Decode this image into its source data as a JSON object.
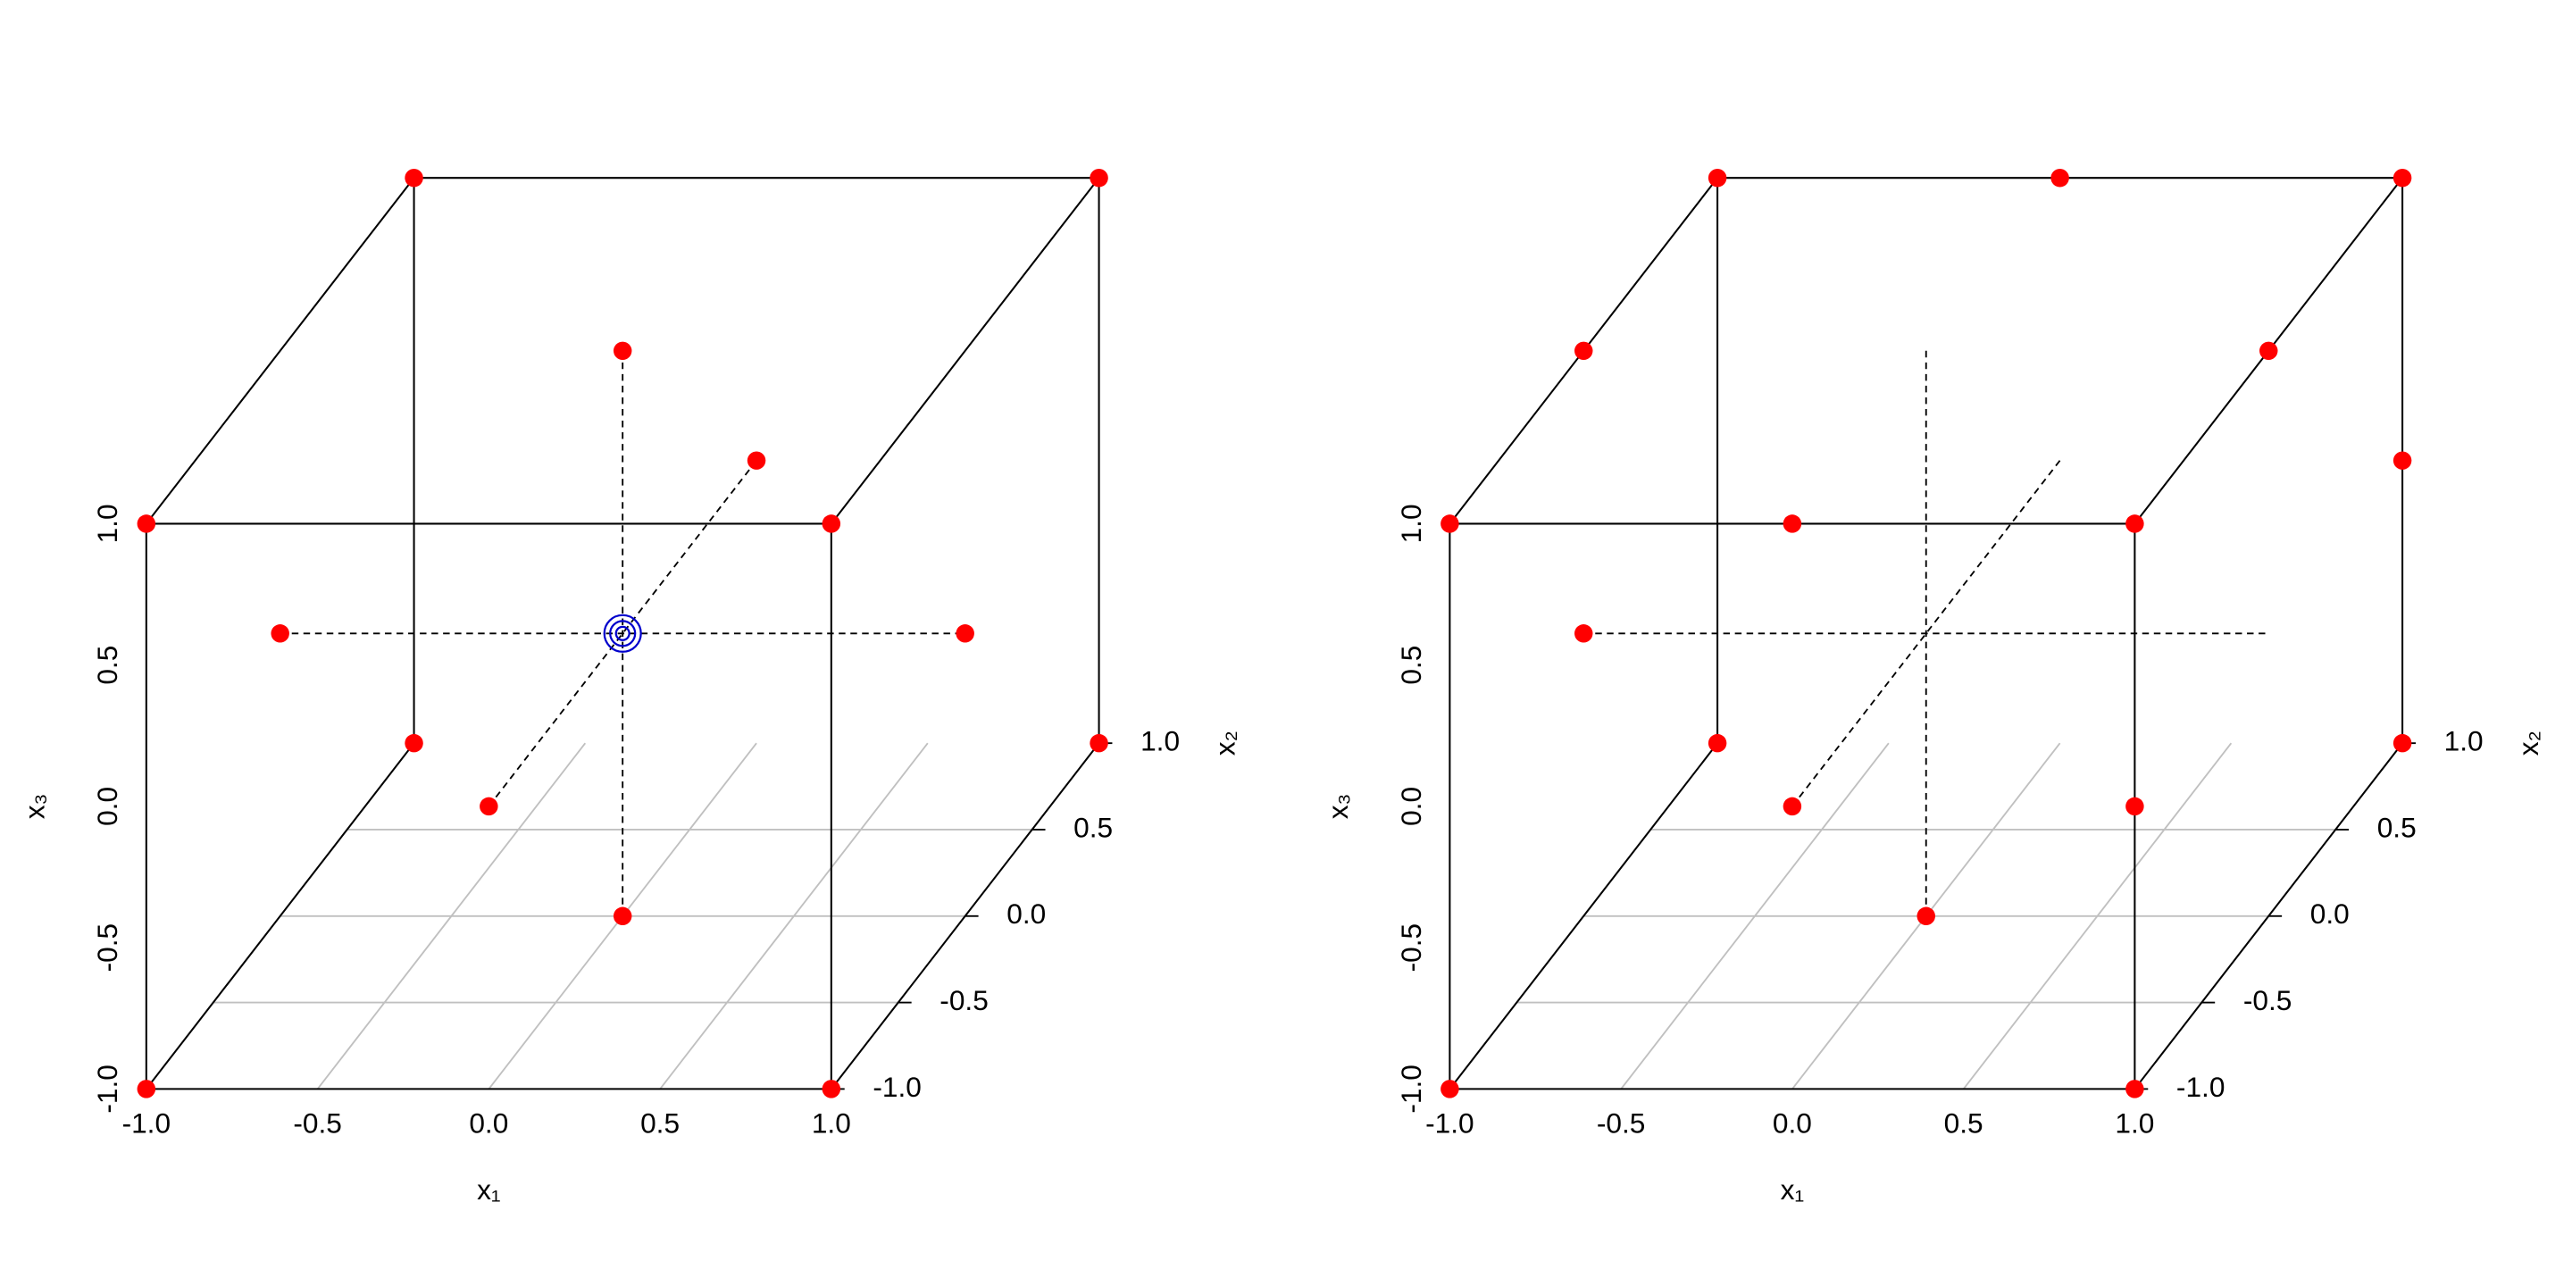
{
  "chart_data": [
    {
      "type": "scatter3d",
      "xlabel": "x₁",
      "ylabel": "x₂",
      "zlabel": "x₃",
      "xlim": [
        -1,
        1
      ],
      "ylim": [
        -1,
        1
      ],
      "zlim": [
        -1,
        1
      ],
      "xticks": [
        {
          "value": -1,
          "label": "-1.0"
        },
        -0.5,
        {
          "value": 0,
          "label": "0.0"
        },
        0.5,
        {
          "value": 1,
          "label": "1.0"
        }
      ],
      "yticks": [
        {
          "value": -1,
          "label": "-1.0"
        },
        -0.5,
        {
          "value": 0,
          "label": "0.0"
        },
        0.5,
        {
          "value": 1,
          "label": "1.0"
        }
      ],
      "zticks": [
        {
          "value": -1,
          "label": "-1.0"
        },
        -0.5,
        {
          "value": 0,
          "label": "0.0"
        },
        0.5,
        {
          "value": 1,
          "label": "1.0"
        }
      ],
      "grid": true,
      "series": [
        {
          "color": "#ff0000",
          "marker": "dot",
          "x": [
            -1,
            1,
            -1,
            1,
            -1,
            1,
            -1,
            1,
            -1,
            1,
            0,
            0,
            0,
            0
          ],
          "y": [
            -1,
            -1,
            1,
            1,
            -1,
            -1,
            1,
            1,
            0,
            0,
            -1,
            1,
            0,
            0
          ],
          "z": [
            -1,
            -1,
            -1,
            -1,
            1,
            1,
            1,
            1,
            0,
            0,
            0,
            0,
            -1,
            1
          ]
        },
        {
          "color": "#0000cc",
          "marker": "ring",
          "x": [
            0,
            0,
            0
          ],
          "y": [
            0,
            0,
            0
          ],
          "z": [
            0,
            0,
            0
          ]
        }
      ]
    },
    {
      "type": "scatter3d",
      "xlabel": "x₁",
      "ylabel": "x₂",
      "zlabel": "x₃",
      "xlim": [
        -1,
        1
      ],
      "ylim": [
        -1,
        1
      ],
      "zlim": [
        -1,
        1
      ],
      "xticks": [
        {
          "value": -1,
          "label": "-1.0"
        },
        -0.5,
        {
          "value": 0,
          "label": "0.0"
        },
        0.5,
        {
          "value": 1,
          "label": "1.0"
        }
      ],
      "yticks": [
        {
          "value": -1,
          "label": "-1.0"
        },
        -0.5,
        {
          "value": 0,
          "label": "0.0"
        },
        0.5,
        {
          "value": 1,
          "label": "1.0"
        }
      ],
      "zticks": [
        {
          "value": -1,
          "label": "-1.0"
        },
        -0.5,
        {
          "value": 0,
          "label": "0.0"
        },
        0.5,
        {
          "value": 1,
          "label": "1.0"
        }
      ],
      "grid": true,
      "series": [
        {
          "color": "#ff0000",
          "marker": "dot",
          "x": [
            -1,
            1,
            -1,
            1,
            -1,
            1,
            -1,
            1,
            0,
            -1,
            1,
            1,
            0,
            -1,
            0,
            1,
            0
          ],
          "y": [
            -1,
            -1,
            1,
            1,
            -1,
            -1,
            1,
            1,
            1,
            0,
            0,
            1,
            -1,
            0,
            -1,
            -1,
            0
          ],
          "z": [
            -1,
            -1,
            -1,
            -1,
            1,
            1,
            1,
            1,
            1,
            1,
            1,
            0,
            1,
            0,
            0,
            0,
            -1
          ]
        }
      ]
    }
  ]
}
